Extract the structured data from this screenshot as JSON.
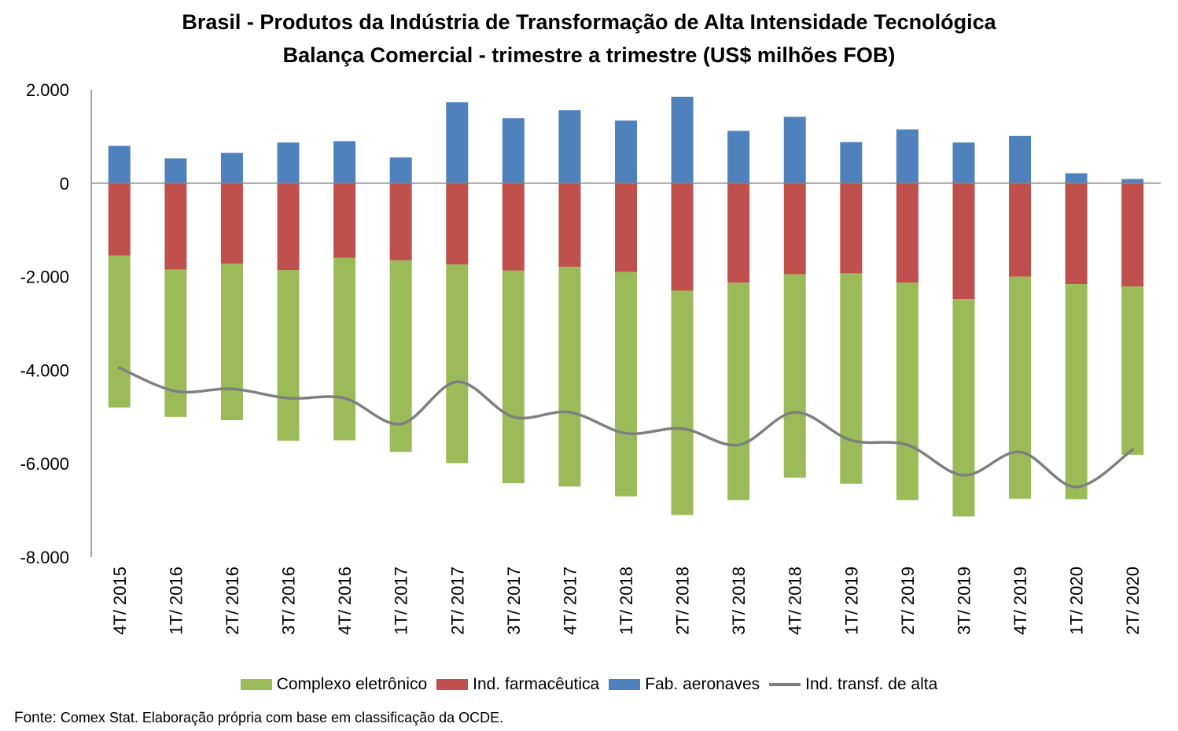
{
  "chart_data": {
    "type": "bar",
    "stacked": true,
    "title": "Brasil - Produtos da Indústria de Transformação de Alta Intensidade Tecnológica",
    "subtitle": "Balança Comercial - trimestre a trimestre (US$ milhões FOB)",
    "categories": [
      "4T/ 2015",
      "1T/ 2016",
      "2T/ 2016",
      "3T/ 2016",
      "4T/ 2016",
      "1T/ 2017",
      "2T/ 2017",
      "3T/ 2017",
      "4T/ 2017",
      "1T/ 2018",
      "2T/ 2018",
      "3T/ 2018",
      "4T/ 2018",
      "1T/ 2019",
      "2T/ 2019",
      "3T/ 2019",
      "4T/ 2019",
      "1T/ 2020",
      "2T/ 2020"
    ],
    "ylim": [
      -8000,
      2000
    ],
    "yticks": [
      2000,
      0,
      -2000,
      -4000,
      -6000,
      -8000
    ],
    "ytick_labels": [
      "2.000",
      "0",
      "-2.000",
      "-4.000",
      "-6.000",
      "-8.000"
    ],
    "series": [
      {
        "name": "Complexo eletrônico",
        "color": "#9BBB59",
        "values": [
          -3250,
          -3150,
          -3350,
          -3650,
          -3900,
          -4100,
          -4250,
          -4550,
          -4700,
          -4800,
          -4800,
          -4650,
          -4350,
          -4500,
          -4650,
          -4650,
          -4750,
          -4600,
          -3600
        ]
      },
      {
        "name": "Ind. farmacêutica",
        "color": "#C0504D",
        "values": [
          -1550,
          -1850,
          -1720,
          -1860,
          -1600,
          -1650,
          -1740,
          -1870,
          -1790,
          -1900,
          -2300,
          -2130,
          -1950,
          -1930,
          -2130,
          -2480,
          -2000,
          -2160,
          -2210
        ]
      },
      {
        "name": "Fab. aeronaves",
        "color": "#4F81BD",
        "values": [
          800,
          530,
          650,
          870,
          900,
          550,
          1730,
          1390,
          1560,
          1340,
          1850,
          1120,
          1420,
          880,
          1150,
          870,
          1010,
          210,
          90
        ]
      },
      {
        "name": "Ind. transf. de alta",
        "color": "#7F7F7F",
        "type": "line",
        "values": [
          -3950,
          -4450,
          -4400,
          -4600,
          -4600,
          -5150,
          -4250,
          -5000,
          -4900,
          -5350,
          -5250,
          -5600,
          -4900,
          -5500,
          -5600,
          -6250,
          -5750,
          -6500,
          -5700
        ]
      }
    ],
    "legend_position": "bottom",
    "grid": false
  },
  "source": {
    "label": "Fonte:",
    "text": "Comex Stat. Elaboração própria com base em classificação da OCDE."
  }
}
